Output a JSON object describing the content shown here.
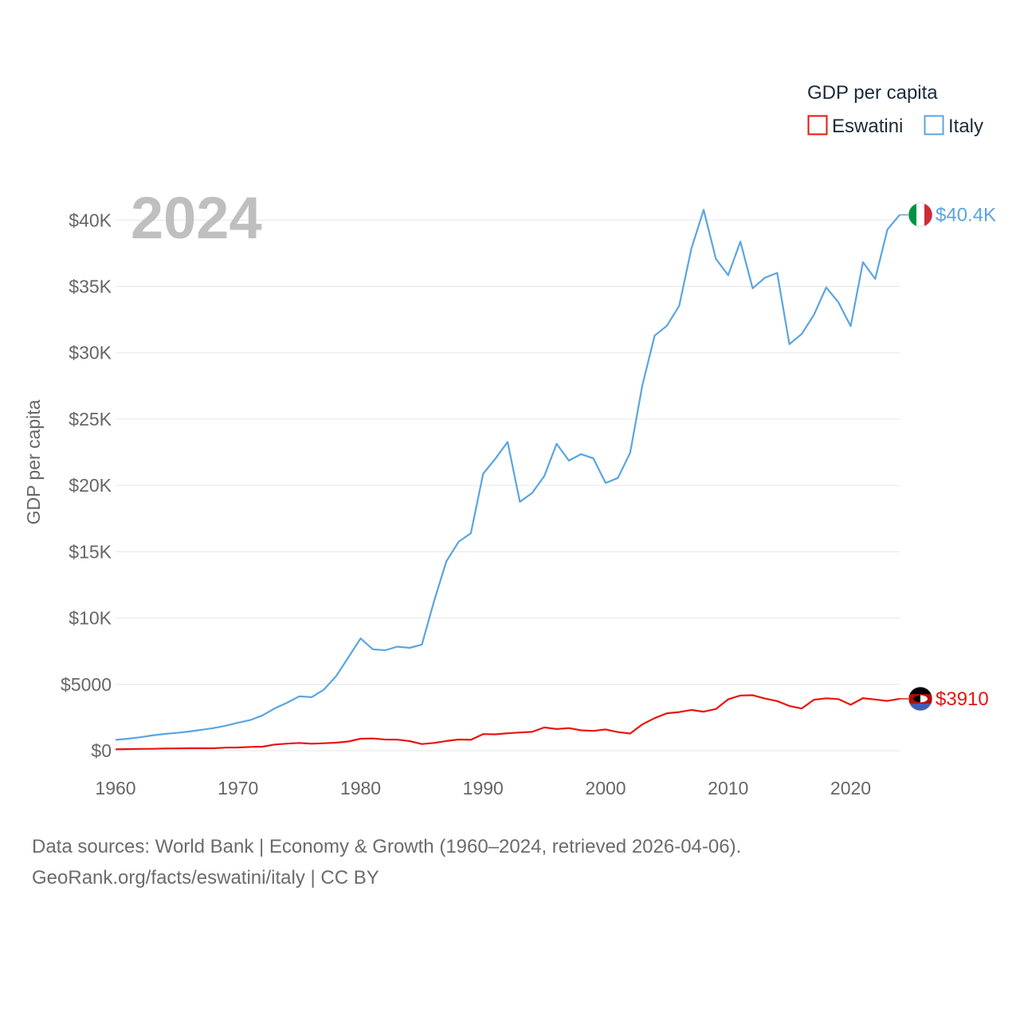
{
  "footer": {
    "line1": "Data sources: World Bank | Economy & Growth (1960–2024, retrieved 2026-04-06).",
    "line2": "GeoRank.org/facts/eswatini/italy | CC BY"
  },
  "colors": {
    "eswatini": "#e8140f",
    "italy": "#5aa5e1"
  },
  "chart_data": {
    "type": "line",
    "title": "GDP per capita",
    "year_label": "2024",
    "ylabel": "GDP per capita",
    "xlabel": "",
    "xlim": [
      1960,
      2024
    ],
    "ylim": [
      0,
      42000
    ],
    "x_ticks": [
      1960,
      1970,
      1980,
      1990,
      2000,
      2010,
      2020
    ],
    "x_tick_labels": [
      "1960",
      "1970",
      "1980",
      "1990",
      "2000",
      "2010",
      "2020"
    ],
    "y_ticks": [
      0,
      5000,
      10000,
      15000,
      20000,
      25000,
      30000,
      35000,
      40000
    ],
    "y_tick_labels": [
      "$0",
      "$5000",
      "$10K",
      "$15K",
      "$20K",
      "$25K",
      "$30K",
      "$35K",
      "$40K"
    ],
    "legend": {
      "position": "top-right",
      "entries": [
        "Eswatini",
        "Italy"
      ]
    },
    "x": [
      1960,
      1961,
      1962,
      1963,
      1964,
      1965,
      1966,
      1967,
      1968,
      1969,
      1970,
      1971,
      1972,
      1973,
      1974,
      1975,
      1976,
      1977,
      1978,
      1979,
      1980,
      1981,
      1982,
      1983,
      1984,
      1985,
      1986,
      1987,
      1988,
      1989,
      1990,
      1991,
      1992,
      1993,
      1994,
      1995,
      1996,
      1997,
      1998,
      1999,
      2000,
      2001,
      2002,
      2003,
      2004,
      2005,
      2006,
      2007,
      2008,
      2009,
      2010,
      2011,
      2012,
      2013,
      2014,
      2015,
      2016,
      2017,
      2018,
      2019,
      2020,
      2021,
      2022,
      2023,
      2024
    ],
    "series": [
      {
        "name": "Eswatini",
        "end_label": "$3910",
        "values": [
          100,
          120,
          130,
          140,
          160,
          170,
          180,
          180,
          180,
          230,
          240,
          280,
          300,
          460,
          530,
          580,
          520,
          560,
          600,
          690,
          900,
          920,
          840,
          830,
          720,
          500,
          580,
          730,
          840,
          820,
          1250,
          1230,
          1310,
          1370,
          1420,
          1750,
          1630,
          1700,
          1530,
          1490,
          1600,
          1400,
          1290,
          1980,
          2450,
          2820,
          2910,
          3070,
          2940,
          3140,
          3870,
          4160,
          4180,
          3930,
          3740,
          3370,
          3180,
          3840,
          3950,
          3890,
          3460,
          3960,
          3860,
          3750,
          3910
        ]
      },
      {
        "name": "Italy",
        "end_label": "$40.4K",
        "values": [
          810,
          900,
          1010,
          1150,
          1260,
          1340,
          1440,
          1570,
          1700,
          1880,
          2110,
          2310,
          2660,
          3190,
          3610,
          4100,
          4030,
          4600,
          5620,
          7030,
          8460,
          7640,
          7570,
          7840,
          7750,
          8000,
          11290,
          14270,
          15750,
          16400,
          20880,
          22010,
          23280,
          18760,
          19430,
          20710,
          23140,
          21870,
          22360,
          22040,
          20180,
          20560,
          22460,
          27550,
          31290,
          32040,
          33540,
          37850,
          40780,
          37080,
          35850,
          38380,
          34860,
          35660,
          36020,
          30650,
          31410,
          32860,
          34930,
          33810,
          32010,
          36830,
          35570,
          39290,
          40400
        ]
      }
    ]
  }
}
